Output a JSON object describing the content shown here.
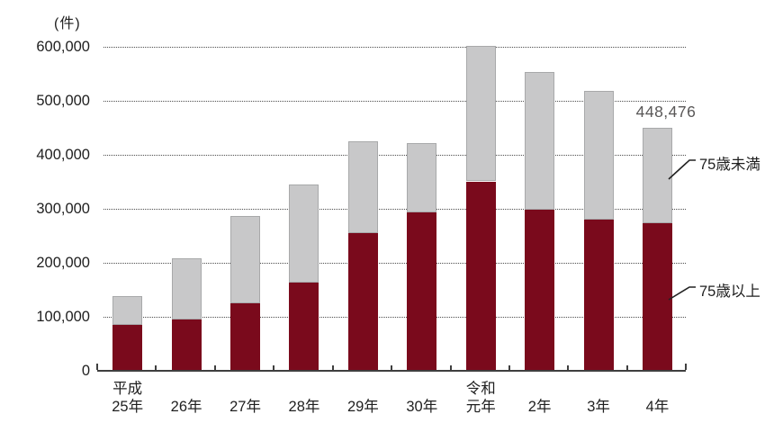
{
  "chart_data": {
    "type": "bar",
    "stacked": true,
    "unit_label": "(件)",
    "categories": [
      "平成\n25年",
      "26年",
      "27年",
      "28年",
      "29年",
      "30年",
      "令和\n元年",
      "2年",
      "3年",
      "4年"
    ],
    "series": [
      {
        "name": "75歳以上",
        "color": "#7a0a1c",
        "values": [
          84000,
          94000,
          124000,
          162000,
          254000,
          292000,
          350000,
          297000,
          279000,
          273000
        ]
      },
      {
        "name": "75歳未満",
        "color": "#c8c8c9",
        "values": [
          54000,
          114000,
          162000,
          183000,
          170000,
          129000,
          251000,
          255000,
          238000,
          175476
        ]
      }
    ],
    "totals": [
      138000,
      208000,
      286000,
      345000,
      424000,
      421000,
      601000,
      552000,
      517000,
      448476
    ],
    "annotation": {
      "text": "448,476",
      "category_index": 9
    },
    "ylim": [
      0,
      600000
    ],
    "ytick_step": 100000,
    "ytick_labels": [
      "0",
      "100,000",
      "200,000",
      "300,000",
      "400,000",
      "500,000",
      "600,000"
    ],
    "grid": "horizontal-dotted",
    "legend_position": "right-callouts"
  },
  "colors": {
    "over75_bar": "#7a0a1c",
    "under75_bar": "#c8c8c9",
    "under75_border": "#a8a9aa",
    "axis": "#3f3f3f",
    "gridline": "#4c4c4c",
    "text": "#1f1f1f",
    "annotation_text": "#595757",
    "background": "#ffffff"
  }
}
